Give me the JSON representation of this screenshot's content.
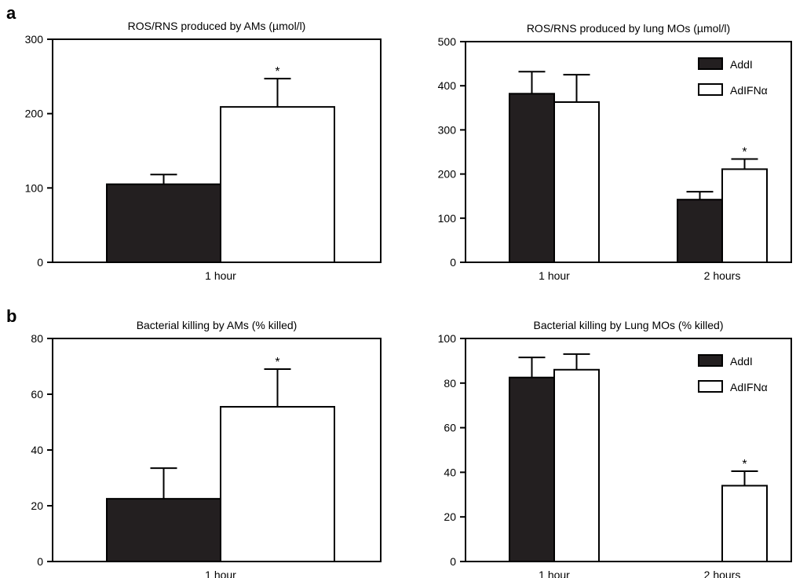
{
  "figure": {
    "panel_labels": [
      "a",
      "b"
    ]
  },
  "chart_data": [
    {
      "type": "bar",
      "title": "ROS/RNS produced by AMs (µmol/l)",
      "categories": [
        "1 hour"
      ],
      "series": [
        {
          "values": [
            105
          ],
          "errors": [
            13
          ],
          "significant": [
            false
          ],
          "color": "#231f20"
        },
        {
          "values": [
            209
          ],
          "errors": [
            38
          ],
          "significant": [
            true
          ],
          "color": "#ffffff"
        }
      ],
      "ylim": [
        0,
        300
      ],
      "yticks": [
        0,
        100,
        200,
        300
      ],
      "legend": null,
      "grid": false
    },
    {
      "type": "bar",
      "title": "ROS/RNS produced by lung MOs (µmol/l)",
      "categories": [
        "1 hour",
        "2 hours"
      ],
      "series": [
        {
          "name": "AddI",
          "values": [
            382,
            142
          ],
          "errors": [
            50,
            18
          ],
          "significant": [
            false,
            false
          ],
          "color": "#231f20"
        },
        {
          "name": "AdIFNα",
          "values": [
            363,
            211
          ],
          "errors": [
            62,
            23
          ],
          "significant": [
            false,
            true
          ],
          "color": "#ffffff"
        }
      ],
      "ylim": [
        0,
        500
      ],
      "yticks": [
        0,
        100,
        200,
        300,
        400,
        500
      ],
      "legend": "top-right",
      "grid": false
    },
    {
      "type": "bar",
      "title": "Bacterial killing by AMs (% killed)",
      "categories": [
        "1 hour"
      ],
      "series": [
        {
          "values": [
            22.5
          ],
          "errors": [
            11
          ],
          "significant": [
            false
          ],
          "color": "#231f20"
        },
        {
          "values": [
            55.5
          ],
          "errors": [
            13.5
          ],
          "significant": [
            true
          ],
          "color": "#ffffff"
        }
      ],
      "ylim": [
        0,
        80
      ],
      "yticks": [
        0,
        20,
        40,
        60,
        80
      ],
      "legend": null,
      "grid": false
    },
    {
      "type": "bar",
      "title": "Bacterial killing by Lung MOs (% killed)",
      "categories": [
        "1 hour",
        "2 hours"
      ],
      "series": [
        {
          "name": "AddI",
          "values": [
            82.5,
            null
          ],
          "errors": [
            9,
            null
          ],
          "significant": [
            false,
            false
          ],
          "color": "#231f20"
        },
        {
          "name": "AdIFNα",
          "values": [
            86,
            34
          ],
          "errors": [
            7,
            6.5
          ],
          "significant": [
            false,
            true
          ],
          "color": "#ffffff"
        }
      ],
      "ylim": [
        0,
        100
      ],
      "yticks": [
        0,
        20,
        40,
        60,
        80,
        100
      ],
      "legend": "top-right",
      "grid": false
    }
  ]
}
